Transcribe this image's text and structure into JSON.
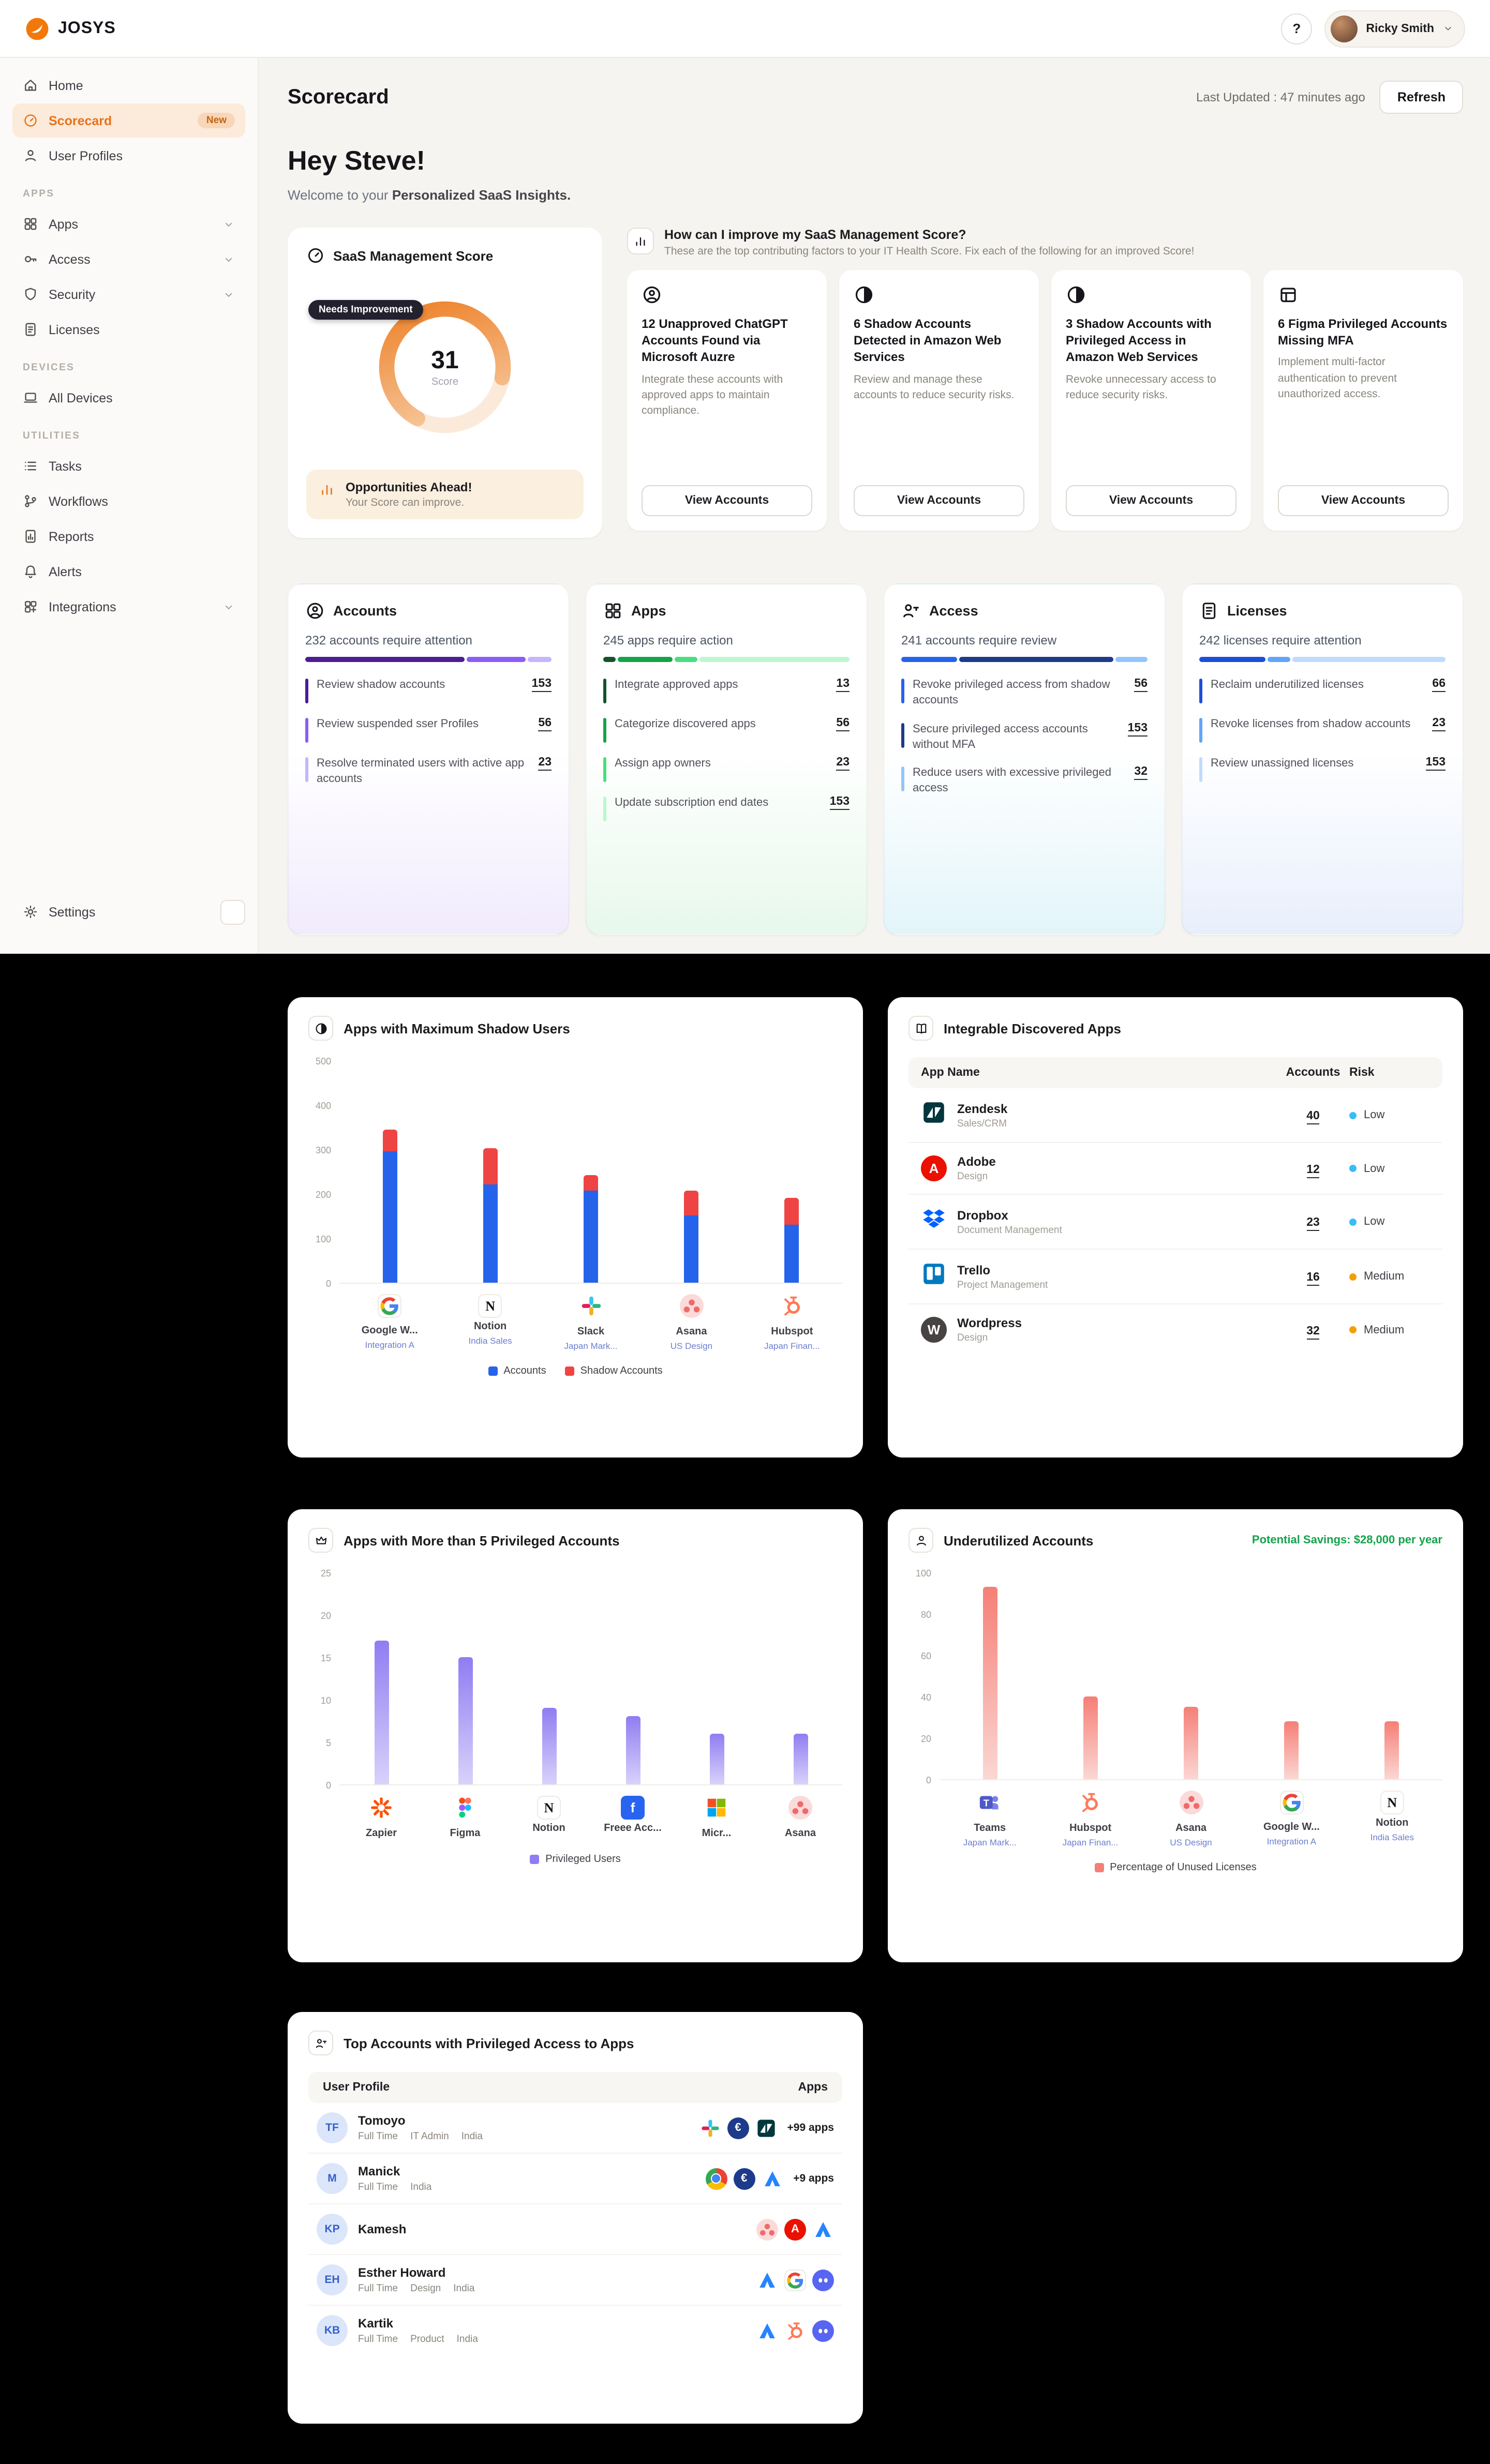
{
  "topbar": {
    "brand": "JOSYS",
    "help_label": "?",
    "user": {
      "name": "Ricky Smith"
    }
  },
  "sidebar": {
    "sections": [
      {
        "items": [
          {
            "label": "Home",
            "icon": "home"
          },
          {
            "label": "Scorecard",
            "icon": "gauge",
            "active": true,
            "badge": "New"
          },
          {
            "label": "User Profiles",
            "icon": "user"
          }
        ]
      },
      {
        "label": "APPS",
        "items": [
          {
            "label": "Apps",
            "icon": "grid",
            "chevron": true
          },
          {
            "label": "Access",
            "icon": "key",
            "chevron": true
          },
          {
            "label": "Security",
            "icon": "shield",
            "chevron": true
          },
          {
            "label": "Licenses",
            "icon": "doc"
          }
        ]
      },
      {
        "label": "DEVICES",
        "items": [
          {
            "label": "All Devices",
            "icon": "laptop"
          }
        ]
      },
      {
        "label": "UTILITIES",
        "items": [
          {
            "label": "Tasks",
            "icon": "list"
          },
          {
            "label": "Workflows",
            "icon": "branch"
          },
          {
            "label": "Reports",
            "icon": "report"
          },
          {
            "label": "Alerts",
            "icon": "bell"
          },
          {
            "label": "Integrations",
            "icon": "puzzle",
            "chevron": true
          }
        ]
      }
    ],
    "footer": {
      "label": "Settings",
      "icon": "gear"
    }
  },
  "page": {
    "title": "Scorecard",
    "last_updated": "Last Updated : 47 minutes ago",
    "refresh_label": "Refresh",
    "greeting": "Hey Steve!",
    "welcome_prefix": "Welcome to your ",
    "welcome_bold": "Personalized SaaS Insights."
  },
  "score_card": {
    "title": "SaaS Management Score",
    "badge": "Needs Improvement",
    "score": "31",
    "score_label": "Score",
    "footer_title": "Opportunities Ahead!",
    "footer_text": "Your Score can improve.",
    "accent": "#ED7D23"
  },
  "improve": {
    "title": "How can I improve my SaaS Management Score?",
    "subtitle": "These are the top contributing factors to your IT Health Score. Fix each of the following for an improved Score!",
    "cards": [
      {
        "icon": "person-circle",
        "title": "12 Unapproved ChatGPT Accounts Found via Microsoft Auzre",
        "desc": "Integrate these accounts with approved apps to maintain compliance.",
        "button": "View Accounts"
      },
      {
        "icon": "half-circle",
        "title": "6 Shadow Accounts Detected in Amazon Web Services",
        "desc": "Review and manage these accounts to reduce security risks.",
        "button": "View Accounts"
      },
      {
        "icon": "half-circle",
        "title": "3 Shadow Accounts with Privileged Access in Amazon Web Services",
        "desc": "Revoke unnecessary access to reduce security risks.",
        "button": "View Accounts"
      },
      {
        "icon": "shield-grid",
        "title": "6 Figma Privileged Accounts Missing MFA",
        "desc": "Implement multi-factor authentication to prevent unauthorized access.",
        "button": "View Accounts"
      }
    ]
  },
  "metrics": [
    {
      "icon": "person-circle",
      "title": "Accounts",
      "summary": "232 accounts require attention",
      "tint": "#F1EBFD",
      "items": [
        {
          "label": "Review shadow accounts",
          "value": "153",
          "color": "#4C1D95"
        },
        {
          "label": "Review suspended sser Profiles",
          "value": "56",
          "color": "#8B5CF6"
        },
        {
          "label": "Resolve terminated users with active app accounts",
          "value": "23",
          "color": "#C4B5FD"
        }
      ]
    },
    {
      "icon": "grid",
      "title": "Apps",
      "summary": "245 apps require action",
      "tint": "#E7F8EC",
      "items": [
        {
          "label": "Integrate approved apps",
          "value": "13",
          "color": "#14532D"
        },
        {
          "label": "Categorize discovered apps",
          "value": "56",
          "color": "#16A34A"
        },
        {
          "label": "Assign app owners",
          "value": "23",
          "color": "#4ADE80"
        },
        {
          "label": "Update subscription end dates",
          "value": "153",
          "color": "#BBF7D0"
        }
      ]
    },
    {
      "icon": "key-user",
      "title": "Access",
      "summary": "241 accounts require review",
      "tint": "#E3F5FA",
      "items": [
        {
          "label": "Revoke privileged access from shadow accounts",
          "value": "56",
          "color": "#2563EB"
        },
        {
          "label": "Secure privileged access accounts without MFA",
          "value": "153",
          "color": "#1E3A8A"
        },
        {
          "label": "Reduce users with excessive privileged access",
          "value": "32",
          "color": "#93C5FD"
        }
      ]
    },
    {
      "icon": "doc",
      "title": "Licenses",
      "summary": "242 licenses require attention",
      "tint": "#E8EFFC",
      "items": [
        {
          "label": "Reclaim underutilized licenses",
          "value": "66",
          "color": "#1D4ED8"
        },
        {
          "label": "Revoke licenses from shadow accounts",
          "value": "23",
          "color": "#60A5FA"
        },
        {
          "label": "Review unassigned licenses",
          "value": "153",
          "color": "#BFDBFE"
        }
      ]
    }
  ],
  "chart_data": [
    {
      "id": "shadow_users",
      "type": "bar",
      "stacked": true,
      "title": "Apps with Maximum Shadow Users",
      "categories": [
        "Google W...",
        "Notion",
        "Slack",
        "Asana",
        "Hubspot"
      ],
      "category_subs": [
        "Integration A",
        "India Sales",
        "Japan Mark...",
        "US Design",
        "Japan Finan..."
      ],
      "category_icons": [
        "google",
        "notion",
        "slack",
        "asana",
        "hubspot"
      ],
      "series": [
        {
          "name": "Accounts",
          "color": "#2563EB",
          "values": [
            295,
            222,
            208,
            151,
            130
          ]
        },
        {
          "name": "Shadow Accounts",
          "color": "#EF4444",
          "values": [
            50,
            81,
            35,
            56,
            60
          ]
        }
      ],
      "ylim": [
        0,
        500
      ],
      "yticks": [
        0,
        100,
        200,
        300,
        400,
        500
      ],
      "legend_position": "bottom",
      "grid": false
    },
    {
      "id": "integrable_apps",
      "type": "table",
      "title": "Integrable Discovered Apps",
      "columns": [
        "App Name",
        "Accounts",
        "Risk"
      ],
      "rows": [
        {
          "app": "Zendesk",
          "category": "Sales/CRM",
          "icon": "zendesk",
          "accounts": "40",
          "risk": "Low"
        },
        {
          "app": "Adobe",
          "category": "Design",
          "icon": "adobe",
          "accounts": "12",
          "risk": "Low"
        },
        {
          "app": "Dropbox",
          "category": "Document Management",
          "icon": "dropbox",
          "accounts": "23",
          "risk": "Low"
        },
        {
          "app": "Trello",
          "category": "Project Management",
          "icon": "trello",
          "accounts": "16",
          "risk": "Medium"
        },
        {
          "app": "Wordpress",
          "category": "Design",
          "icon": "wordpress",
          "accounts": "32",
          "risk": "Medium"
        }
      ],
      "risk_colors": {
        "Low": "#38BDF8",
        "Medium": "#F59E0B"
      }
    },
    {
      "id": "privileged_apps",
      "type": "bar",
      "title": "Apps with More than 5 Privileged Accounts",
      "categories": [
        "Zapier",
        "Figma",
        "Notion",
        "Freee Acc...",
        "Micr...",
        "Asana"
      ],
      "category_icons": [
        "zapier",
        "figma",
        "notion",
        "freee",
        "microsoft",
        "asana"
      ],
      "series": [
        {
          "name": "Privileged Users",
          "color_top": "#8F7DF2",
          "color_bottom": "#D9D2FA",
          "values": [
            17,
            15,
            9,
            8,
            6,
            6
          ]
        }
      ],
      "ylim": [
        0,
        25
      ],
      "yticks": [
        0,
        5,
        10,
        15,
        20,
        25
      ],
      "legend_position": "bottom",
      "grid": false
    },
    {
      "id": "underutilized",
      "type": "bar",
      "title": "Underutilized Accounts",
      "savings_note": "Potential Savings: $28,000 per year",
      "categories": [
        "Teams",
        "Hubspot",
        "Asana",
        "Google W...",
        "Notion"
      ],
      "category_subs": [
        "Japan Mark...",
        "Japan Finan...",
        "US Design",
        "Integration A",
        "India Sales"
      ],
      "category_icons": [
        "teams",
        "hubspot",
        "asana",
        "google",
        "notion"
      ],
      "series": [
        {
          "name": "Percentage of Unused Licenses",
          "color_top": "#F57F76",
          "color_bottom": "#FBD7D4",
          "values": [
            93,
            40,
            35,
            28,
            28
          ]
        }
      ],
      "ylim": [
        0,
        100
      ],
      "yticks": [
        0,
        20,
        40,
        60,
        80,
        100
      ],
      "legend_position": "bottom",
      "grid": false
    }
  ],
  "top_accounts": {
    "title": "Top Accounts with Privileged Access to Apps",
    "columns": [
      "User Profile",
      "Apps"
    ],
    "rows": [
      {
        "initials": "TF",
        "name": "Tomoyo",
        "meta": [
          "Full Time",
          "IT Admin",
          "India"
        ],
        "apps": [
          "slack",
          "euro",
          "zendesk"
        ],
        "extra": "+99 apps"
      },
      {
        "initials": "M",
        "name": "Manick",
        "meta": [
          "Full Time",
          "India"
        ],
        "apps": [
          "chrome",
          "euro",
          "atlassian"
        ],
        "extra": "+9 apps"
      },
      {
        "initials": "KP",
        "name": "Kamesh",
        "meta": [],
        "apps": [
          "asana",
          "adobe",
          "atlassian"
        ],
        "extra": ""
      },
      {
        "initials": "EH",
        "name": "Esther Howard",
        "meta": [
          "Full Time",
          "Design",
          "India"
        ],
        "apps": [
          "atlassian",
          "google",
          "discord"
        ],
        "extra": ""
      },
      {
        "initials": "KB",
        "name": "Kartik",
        "meta": [
          "Full Time",
          "Product",
          "India"
        ],
        "apps": [
          "atlassian",
          "hubspot",
          "discord"
        ],
        "extra": ""
      }
    ]
  }
}
